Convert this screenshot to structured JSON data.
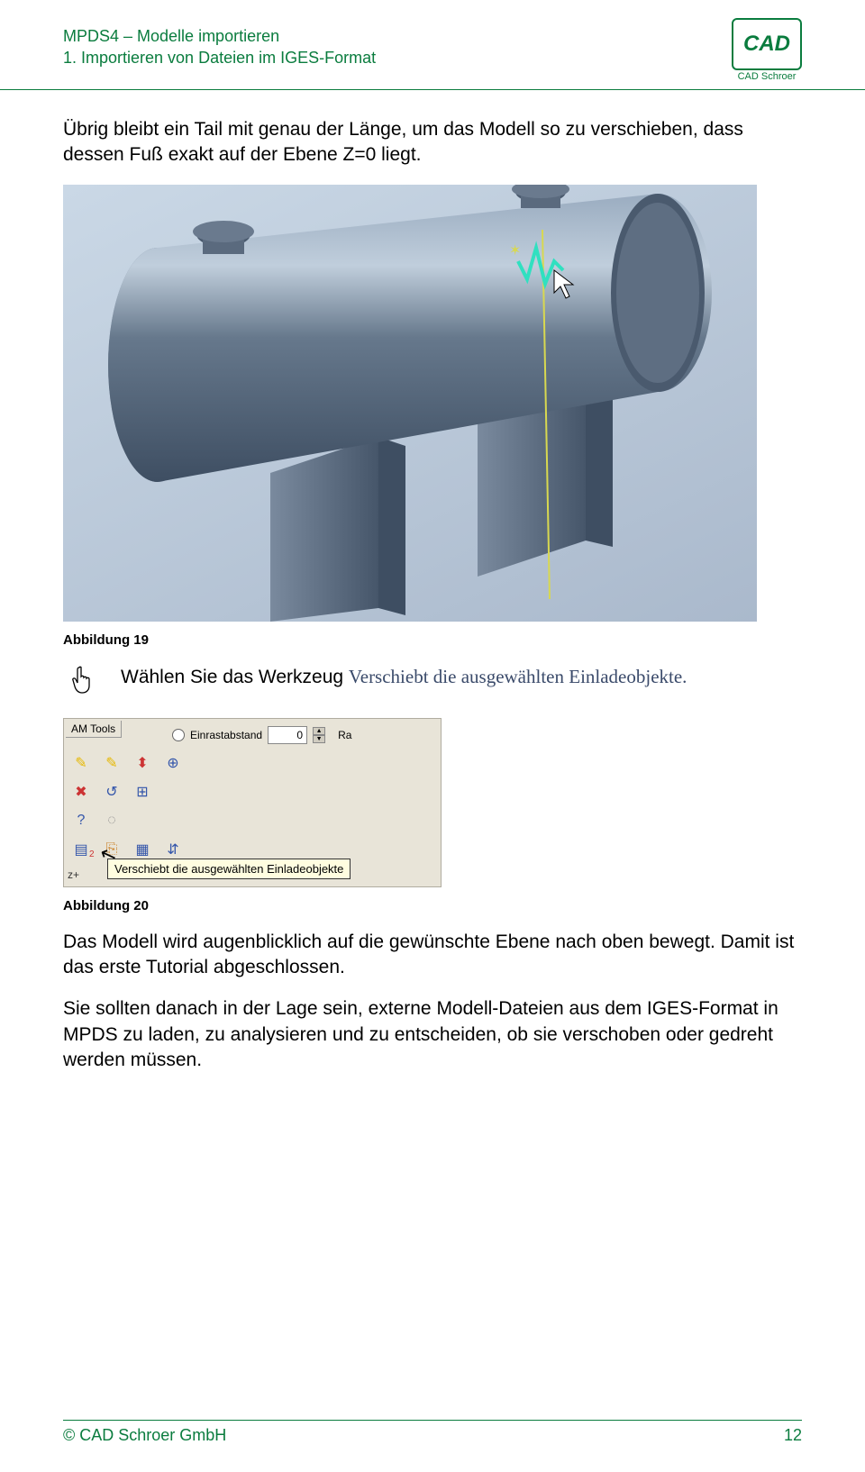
{
  "header": {
    "title_line1": "MPDS4 – Modelle importieren",
    "title_line2": "1. Importieren von Dateien im IGES-Format",
    "logo_text": "CAD",
    "logo_caption": "CAD Schroer"
  },
  "para1": "Übrig bleibt ein Tail mit genau der Länge, um das Modell so zu verschieben, dass dessen Fuß exakt auf der Ebene Z=0 liegt.",
  "fig19": {
    "caption": "Abbildung 19",
    "bg_grad_from": "#cad8e6",
    "bg_grad_to": "#aab9cc",
    "tank_light": "#8896a6",
    "tank_mid": "#66788c",
    "tank_dark": "#4a5a6e",
    "support_color": "#5a6a7e",
    "guide_color": "#d8d850",
    "marker_color": "#30e0c0"
  },
  "instruction": {
    "lead": "Wählen Sie das Werkzeug ",
    "tool_name": "Verschiebt die ausgewählten Einladeobjekte."
  },
  "fig20": {
    "caption": "Abbildung 20",
    "tab_label": "AM Tools",
    "snap_label": "Einrastabstand",
    "snap_value": "0",
    "right_label": "Ra",
    "tooltip": "Verschiebt die ausgewählten Einladeobjekte",
    "z_label": "z+",
    "two_label": "2",
    "icons": [
      {
        "glyph": "✎",
        "color": "#e6b800"
      },
      {
        "glyph": "✎",
        "color": "#e6b800"
      },
      {
        "glyph": "⬍",
        "color": "#cc3333"
      },
      {
        "glyph": "⊕",
        "color": "#3355aa"
      },
      {
        "glyph": "✖",
        "color": "#cc3333"
      },
      {
        "glyph": "↺",
        "color": "#3355aa"
      },
      {
        "glyph": "⊞",
        "color": "#3355aa"
      },
      {
        "glyph": "",
        "color": "#000"
      },
      {
        "glyph": "?",
        "color": "#3355aa"
      },
      {
        "glyph": "◌",
        "color": "#888"
      },
      {
        "glyph": "",
        "color": "#000"
      },
      {
        "glyph": "",
        "color": "#000"
      },
      {
        "glyph": "▤",
        "color": "#3355aa"
      },
      {
        "glyph": "⎘",
        "color": "#cc8833"
      },
      {
        "glyph": "▦",
        "color": "#3355aa"
      },
      {
        "glyph": "⇵",
        "color": "#3355aa"
      }
    ]
  },
  "para2": "Das Modell wird augenblicklich auf die gewünschte Ebene nach oben bewegt. Damit ist das erste Tutorial abgeschlossen.",
  "para3": "Sie sollten danach in der Lage sein, externe Modell-Dateien aus dem IGES-Format in MPDS zu laden, zu analysieren und zu entscheiden, ob sie verschoben oder gedreht werden müssen.",
  "footer": {
    "left": "© CAD Schroer GmbH",
    "page": "12"
  }
}
